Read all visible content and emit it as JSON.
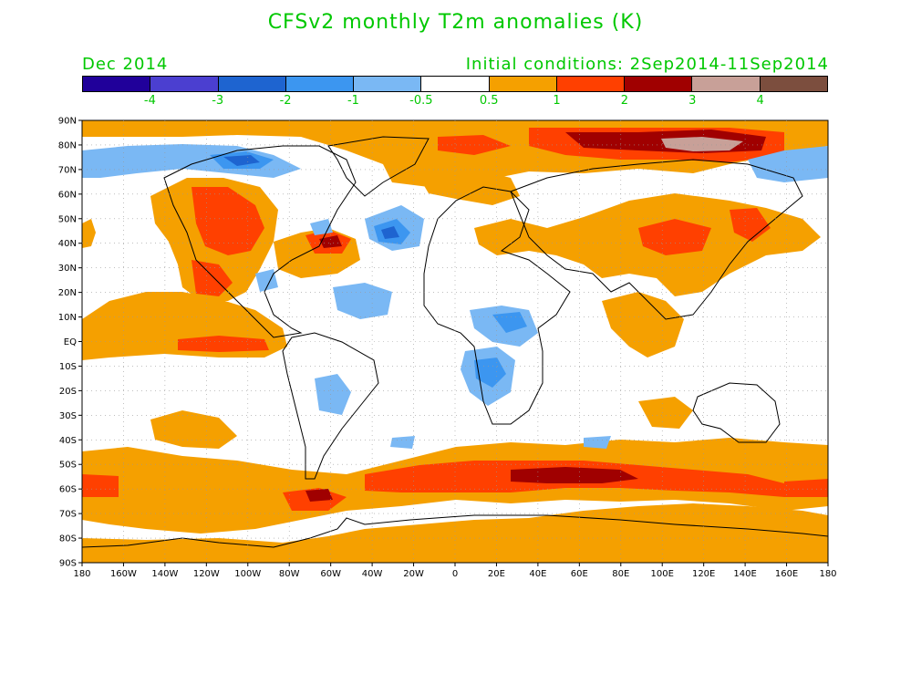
{
  "title": "CFSv2 monthly T2m anomalies (K)",
  "subtitle_left": "Dec 2014",
  "subtitle_right": "Initial conditions: 2Sep2014-11Sep2014",
  "colorbar": {
    "colors": [
      "#20009a",
      "#4b3fd0",
      "#1e64d0",
      "#3c96f0",
      "#7ab8f4",
      "#ffffff",
      "#f5a000",
      "#ff4000",
      "#a00000",
      "#c8a098",
      "#7c4e3e"
    ],
    "labels": [
      "-4",
      "-3",
      "-2",
      "-1",
      "-0.5",
      "0.5",
      "1",
      "2",
      "3",
      "4"
    ]
  },
  "lat_labels": [
    "90N",
    "80N",
    "70N",
    "60N",
    "50N",
    "40N",
    "30N",
    "20N",
    "10N",
    "EQ",
    "10S",
    "20S",
    "30S",
    "40S",
    "50S",
    "60S",
    "70S",
    "80S",
    "90S"
  ],
  "lon_labels": [
    "180",
    "160W",
    "140W",
    "120W",
    "100W",
    "80W",
    "60W",
    "40W",
    "20W",
    "0",
    "20E",
    "40E",
    "60E",
    "80E",
    "100E",
    "120E",
    "140E",
    "160E",
    "180"
  ]
}
